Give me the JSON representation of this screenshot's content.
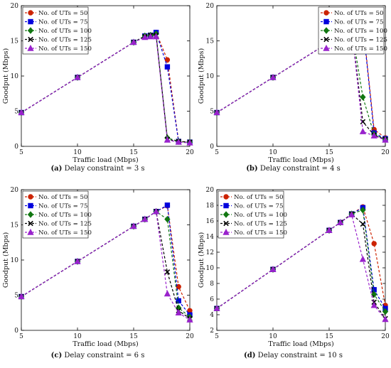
{
  "series_styles": [
    {
      "color": "#cc2200",
      "marker": "circle"
    },
    {
      "color": "#0000dd",
      "marker": "square"
    },
    {
      "color": "#117711",
      "marker": "diamond"
    },
    {
      "color": "#000000",
      "marker": "x"
    },
    {
      "color": "#9922cc",
      "marker": "triangle"
    }
  ],
  "chart_data": [
    {
      "type": "line",
      "caption_id": "(a)",
      "caption_text": "Delay constraint = 3 s",
      "xlabel": "Traffic load (Mbps)",
      "ylabel": "Goodput (Mbps)",
      "xlim": [
        5,
        20
      ],
      "ylim": [
        0,
        20
      ],
      "xticks": [
        5,
        10,
        15,
        20
      ],
      "yticks": [
        0,
        5,
        10,
        15,
        20
      ],
      "legend": "top-left",
      "x": [
        5,
        10,
        15,
        16,
        16.5,
        17,
        18,
        19,
        20
      ],
      "series": [
        {
          "name": "No. of UTs = 50",
          "values": [
            4.8,
            9.8,
            14.8,
            15.7,
            15.8,
            16.2,
            12.3,
            0.7,
            0.6
          ]
        },
        {
          "name": "No. of UTs = 75",
          "values": [
            4.8,
            9.8,
            14.8,
            15.7,
            15.8,
            16.2,
            11.3,
            0.7,
            0.6
          ]
        },
        {
          "name": "No. of UTs = 100",
          "values": [
            4.8,
            9.8,
            14.8,
            15.7,
            15.8,
            16.0,
            1.2,
            0.7,
            0.6
          ]
        },
        {
          "name": "No. of UTs = 125",
          "values": [
            4.8,
            9.8,
            14.8,
            15.6,
            15.8,
            15.8,
            1.0,
            0.7,
            0.6
          ]
        },
        {
          "name": "No. of UTs = 150",
          "values": [
            4.8,
            9.8,
            14.8,
            15.5,
            15.6,
            15.6,
            0.9,
            0.6,
            0.5
          ]
        }
      ]
    },
    {
      "type": "line",
      "caption_id": "(b)",
      "caption_text": "Delay constraint = 4 s",
      "xlabel": "Traffic load (Mbps)",
      "ylabel": "Goodput (Mbps)",
      "xlim": [
        5,
        20
      ],
      "ylim": [
        0,
        20
      ],
      "xticks": [
        5,
        10,
        15,
        20
      ],
      "yticks": [
        0,
        5,
        10,
        15,
        20
      ],
      "legend": "top-right",
      "x": [
        5,
        10,
        15,
        16,
        17,
        18,
        19,
        20
      ],
      "series": [
        {
          "name": "No. of UTs = 50",
          "values": [
            4.8,
            9.8,
            14.8,
            15.8,
            16.8,
            17.6,
            2.4,
            1.2
          ]
        },
        {
          "name": "No. of UTs = 75",
          "values": [
            4.8,
            9.8,
            14.8,
            15.8,
            16.8,
            17.4,
            1.9,
            1.1
          ]
        },
        {
          "name": "No. of UTs = 100",
          "values": [
            4.8,
            9.8,
            14.8,
            15.8,
            16.8,
            7.0,
            1.7,
            1.0
          ]
        },
        {
          "name": "No. of UTs = 125",
          "values": [
            4.8,
            9.8,
            14.8,
            15.8,
            16.8,
            3.5,
            1.6,
            1.0
          ]
        },
        {
          "name": "No. of UTs = 150",
          "values": [
            4.8,
            9.8,
            14.8,
            15.8,
            16.8,
            2.1,
            1.5,
            0.9
          ]
        }
      ]
    },
    {
      "type": "line",
      "caption_id": "(c)",
      "caption_text": "Delay constraint = 6 s",
      "xlabel": "Traffic load (Mbps)",
      "ylabel": "Goodput (Mbps)",
      "xlim": [
        5,
        20
      ],
      "ylim": [
        0,
        20
      ],
      "xticks": [
        5,
        10,
        15,
        20
      ],
      "yticks": [
        0,
        5,
        10,
        15,
        20
      ],
      "legend": "top-left",
      "x": [
        5,
        10,
        15,
        16,
        17,
        18,
        19,
        20
      ],
      "series": [
        {
          "name": "No. of UTs = 50",
          "values": [
            4.8,
            9.8,
            14.8,
            15.8,
            16.9,
            17.7,
            6.2,
            2.8
          ]
        },
        {
          "name": "No. of UTs = 75",
          "values": [
            4.8,
            9.8,
            14.8,
            15.8,
            16.9,
            17.8,
            4.2,
            2.2
          ]
        },
        {
          "name": "No. of UTs = 100",
          "values": [
            4.8,
            9.8,
            14.8,
            15.8,
            16.9,
            15.8,
            3.2,
            1.9
          ]
        },
        {
          "name": "No. of UTs = 125",
          "values": [
            4.8,
            9.8,
            14.8,
            15.8,
            16.9,
            8.3,
            2.8,
            1.7
          ]
        },
        {
          "name": "No. of UTs = 150",
          "values": [
            4.8,
            9.8,
            14.8,
            15.8,
            16.9,
            5.2,
            2.5,
            1.5
          ]
        }
      ]
    },
    {
      "type": "line",
      "caption_id": "(d)",
      "caption_text": "Delay constraint = 10 s",
      "xlabel": "Traffic load (Mbps)",
      "ylabel": "Goodput (Mbps)",
      "xlim": [
        5,
        20
      ],
      "ylim": [
        2,
        20
      ],
      "xticks": [
        5,
        10,
        15,
        20
      ],
      "yticks": [
        2,
        4,
        6,
        8,
        10,
        12,
        14,
        16,
        18,
        20
      ],
      "legend": "top-left",
      "x": [
        5,
        10,
        15,
        16,
        17,
        18,
        19,
        20
      ],
      "series": [
        {
          "name": "No. of UTs = 50",
          "values": [
            4.8,
            9.8,
            14.8,
            15.8,
            16.9,
            17.8,
            13.1,
            5.2
          ]
        },
        {
          "name": "No. of UTs = 75",
          "values": [
            4.8,
            9.8,
            14.8,
            15.8,
            16.9,
            17.7,
            7.2,
            4.8
          ]
        },
        {
          "name": "No. of UTs = 100",
          "values": [
            4.8,
            9.8,
            14.8,
            15.8,
            16.9,
            17.4,
            6.6,
            4.4
          ]
        },
        {
          "name": "No. of UTs = 125",
          "values": [
            4.8,
            9.8,
            14.8,
            15.8,
            16.9,
            15.6,
            5.6,
            3.5
          ]
        },
        {
          "name": "No. of UTs = 150",
          "values": [
            4.8,
            9.8,
            14.8,
            15.8,
            16.8,
            11.1,
            5.2,
            3.4
          ]
        }
      ]
    }
  ]
}
